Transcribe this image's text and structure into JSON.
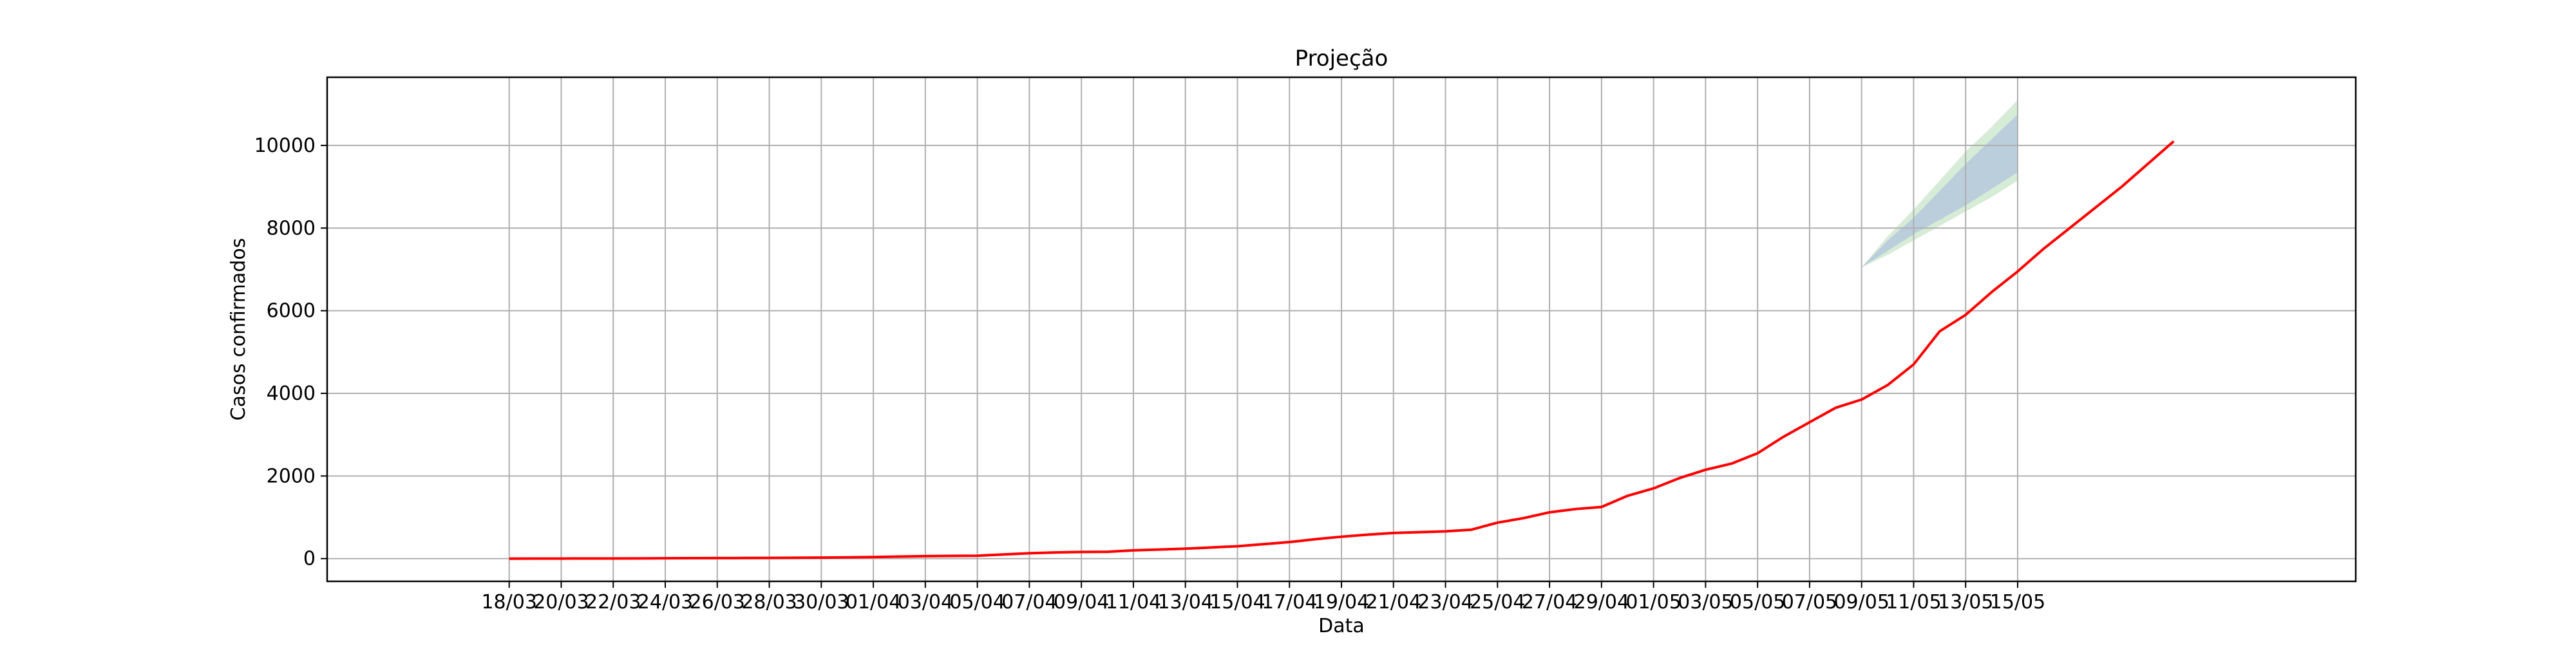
{
  "chart_data": {
    "type": "line",
    "title": "Projeção",
    "xlabel": "Data",
    "ylabel": "Casos confirmados",
    "grid": true,
    "ylim": [
      -550,
      11650
    ],
    "yticks": [
      0,
      2000,
      4000,
      6000,
      8000,
      10000
    ],
    "xticks": [
      "18/03",
      "20/03",
      "22/03",
      "24/03",
      "26/03",
      "28/03",
      "30/03",
      "01/04",
      "03/04",
      "05/04",
      "07/04",
      "09/04",
      "11/04",
      "13/04",
      "15/04",
      "17/04",
      "19/04",
      "21/04",
      "23/04",
      "25/04",
      "27/04",
      "29/04",
      "01/05",
      "03/05",
      "05/05",
      "07/05",
      "09/05",
      "11/05",
      "13/05",
      "15/05"
    ],
    "start_date": "18/03",
    "observed_end_date": "09/05",
    "series": [
      {
        "color": "#ff0000",
        "values": [
          0,
          1,
          2,
          3,
          4,
          6,
          8,
          10,
          12,
          14,
          16,
          20,
          25,
          30,
          38,
          50,
          60,
          65,
          70,
          100,
          130,
          150,
          160,
          165,
          200,
          220,
          240,
          270,
          300,
          350,
          400,
          470,
          530,
          580,
          620,
          640,
          660,
          700,
          870,
          980,
          1120,
          1200,
          1250,
          1520,
          1700,
          1950,
          2150,
          2300,
          2550,
          2950,
          3300,
          3650,
          3850,
          4200,
          4700,
          5500,
          5900,
          6450,
          6950,
          7500,
          8000,
          8500,
          9000,
          9550,
          10100
        ]
      }
    ],
    "bands": [
      {
        "color": "#b0c4de",
        "x_from": "09/05",
        "upper": [
          7050,
          7700,
          8250,
          8900,
          9550,
          10150,
          10750
        ],
        "lower": [
          7050,
          7450,
          7850,
          8200,
          8550,
          8950,
          9350
        ]
      },
      {
        "color": "#c8e6c8",
        "x_from": "09/05",
        "upper": [
          7050,
          7800,
          8450,
          9150,
          9850,
          10450,
          11100
        ],
        "lower": [
          7050,
          7350,
          7700,
          8050,
          8400,
          8750,
          9150
        ]
      }
    ]
  }
}
